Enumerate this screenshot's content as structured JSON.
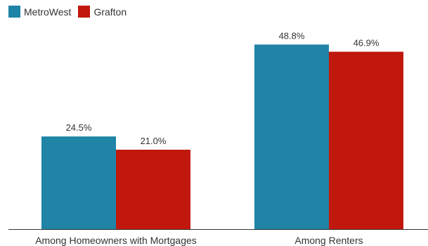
{
  "chart_data": {
    "type": "bar",
    "categories": [
      "Among Homeowners with Mortgages",
      "Among Renters"
    ],
    "series": [
      {
        "name": "MetroWest",
        "values": [
          24.5,
          48.8
        ],
        "labels": [
          "24.5%",
          "48.8%"
        ],
        "color": "#1f84a6"
      },
      {
        "name": "Grafton",
        "values": [
          21.0,
          46.9
        ],
        "labels": [
          "21.0%",
          "46.9%"
        ],
        "color": "#c0180c"
      }
    ],
    "title": "",
    "xlabel": "",
    "ylabel": "",
    "ylim": [
      0,
      55
    ],
    "grid": false,
    "legend": "top-left"
  }
}
